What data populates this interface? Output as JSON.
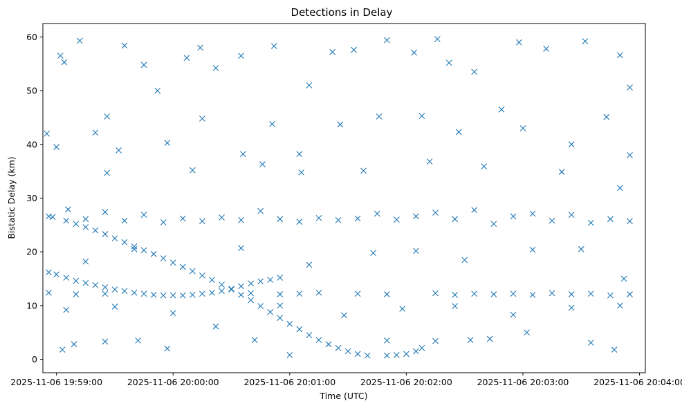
{
  "chart_data": {
    "type": "scatter",
    "title": "Detections in Delay",
    "xlabel": "Time (UTC)",
    "ylabel": "Bistatic Delay (km)",
    "marker": "x",
    "color": "#1f77b4",
    "grid": false,
    "xlim": [
      "2025-11-06 19:58:53",
      "2025-11-06 20:04:03"
    ],
    "ylim": [
      -2.5,
      62.5
    ],
    "xticks": [
      "2025-11-06 19:59:00",
      "2025-11-06 20:00:00",
      "2025-11-06 20:01:00",
      "2025-11-06 20:02:00",
      "2025-11-06 20:03:00",
      "2025-11-06 20:04:00"
    ],
    "yticks": [
      0,
      10,
      20,
      30,
      40,
      50,
      60
    ],
    "series": [
      {
        "description": "descending track",
        "points": [
          [
            "2025-11-06 19:58:56",
            16.2
          ],
          [
            "2025-11-06 19:59:00",
            15.8
          ],
          [
            "2025-11-06 19:59:05",
            15.2
          ],
          [
            "2025-11-06 19:59:10",
            14.6
          ],
          [
            "2025-11-06 19:59:15",
            14.2
          ],
          [
            "2025-11-06 19:59:20",
            13.8
          ],
          [
            "2025-11-06 19:59:25",
            13.4
          ],
          [
            "2025-11-06 19:59:30",
            13.0
          ],
          [
            "2025-11-06 19:59:35",
            12.7
          ],
          [
            "2025-11-06 19:59:40",
            12.4
          ],
          [
            "2025-11-06 19:59:45",
            12.2
          ],
          [
            "2025-11-06 19:59:50",
            12.0
          ],
          [
            "2025-11-06 19:59:55",
            11.9
          ],
          [
            "2025-11-06 20:00:00",
            11.9
          ],
          [
            "2025-11-06 20:00:05",
            11.9
          ],
          [
            "2025-11-06 20:00:10",
            12.0
          ],
          [
            "2025-11-06 20:00:15",
            12.2
          ],
          [
            "2025-11-06 20:00:20",
            12.4
          ],
          [
            "2025-11-06 20:00:25",
            12.7
          ],
          [
            "2025-11-06 20:00:30",
            13.1
          ],
          [
            "2025-11-06 20:00:35",
            13.6
          ],
          [
            "2025-11-06 20:00:40",
            14.1
          ],
          [
            "2025-11-06 20:00:45",
            14.5
          ],
          [
            "2025-11-06 20:00:50",
            14.8
          ],
          [
            "2025-11-06 20:00:55",
            15.2
          ]
        ]
      },
      {
        "description": "diagonal track",
        "points": [
          [
            "2025-11-06 19:58:58",
            26.5
          ],
          [
            "2025-11-06 19:59:05",
            25.8
          ],
          [
            "2025-11-06 19:59:10",
            25.2
          ],
          [
            "2025-11-06 19:59:15",
            24.6
          ],
          [
            "2025-11-06 19:59:20",
            24.0
          ],
          [
            "2025-11-06 19:59:25",
            23.3
          ],
          [
            "2025-11-06 19:59:30",
            22.5
          ],
          [
            "2025-11-06 19:59:35",
            21.8
          ],
          [
            "2025-11-06 19:59:40",
            21.0
          ],
          [
            "2025-11-06 19:59:45",
            20.3
          ],
          [
            "2025-11-06 19:59:50",
            19.6
          ],
          [
            "2025-11-06 19:59:55",
            18.8
          ],
          [
            "2025-11-06 20:00:00",
            18.0
          ],
          [
            "2025-11-06 20:00:05",
            17.2
          ],
          [
            "2025-11-06 20:00:10",
            16.4
          ],
          [
            "2025-11-06 20:00:15",
            15.6
          ],
          [
            "2025-11-06 20:00:20",
            14.8
          ],
          [
            "2025-11-06 20:00:25",
            13.9
          ],
          [
            "2025-11-06 20:00:30",
            13.0
          ],
          [
            "2025-11-06 20:00:35",
            12.0
          ],
          [
            "2025-11-06 20:00:40",
            11.0
          ],
          [
            "2025-11-06 20:00:45",
            9.9
          ],
          [
            "2025-11-06 20:00:50",
            8.8
          ],
          [
            "2025-11-06 20:00:55",
            7.7
          ],
          [
            "2025-11-06 20:01:00",
            6.6
          ],
          [
            "2025-11-06 20:01:05",
            5.6
          ],
          [
            "2025-11-06 20:01:10",
            4.5
          ],
          [
            "2025-11-06 20:01:15",
            3.6
          ],
          [
            "2025-11-06 20:01:20",
            2.8
          ],
          [
            "2025-11-06 20:01:25",
            2.1
          ],
          [
            "2025-11-06 20:01:30",
            1.5
          ],
          [
            "2025-11-06 20:01:35",
            1.0
          ],
          [
            "2025-11-06 20:01:40",
            0.7
          ],
          [
            "2025-11-06 20:01:50",
            0.7
          ],
          [
            "2025-11-06 20:01:55",
            0.8
          ],
          [
            "2025-11-06 20:02:00",
            1.0
          ],
          [
            "2025-11-06 20:02:05",
            1.5
          ],
          [
            "2025-11-06 20:02:08",
            2.1
          ]
        ]
      },
      {
        "description": "band near 26 km",
        "points": [
          [
            "2025-11-06 19:58:56",
            26.6
          ],
          [
            "2025-11-06 19:59:06",
            27.9
          ],
          [
            "2025-11-06 19:59:15",
            26.1
          ],
          [
            "2025-11-06 19:59:25",
            27.4
          ],
          [
            "2025-11-06 19:59:35",
            25.8
          ],
          [
            "2025-11-06 19:59:45",
            26.9
          ],
          [
            "2025-11-06 19:59:55",
            25.5
          ],
          [
            "2025-11-06 20:00:05",
            26.2
          ],
          [
            "2025-11-06 20:00:15",
            25.7
          ],
          [
            "2025-11-06 20:00:25",
            26.4
          ],
          [
            "2025-11-06 20:00:35",
            25.9
          ],
          [
            "2025-11-06 20:00:45",
            27.6
          ],
          [
            "2025-11-06 20:00:55",
            26.1
          ],
          [
            "2025-11-06 20:01:05",
            25.6
          ],
          [
            "2025-11-06 20:01:15",
            26.3
          ],
          [
            "2025-11-06 20:01:25",
            25.9
          ],
          [
            "2025-11-06 20:01:35",
            26.2
          ],
          [
            "2025-11-06 20:01:45",
            27.1
          ],
          [
            "2025-11-06 20:01:55",
            26.0
          ],
          [
            "2025-11-06 20:02:05",
            26.6
          ],
          [
            "2025-11-06 20:02:15",
            27.3
          ],
          [
            "2025-11-06 20:02:25",
            26.1
          ],
          [
            "2025-11-06 20:02:35",
            27.8
          ],
          [
            "2025-11-06 20:02:45",
            25.2
          ],
          [
            "2025-11-06 20:02:55",
            26.6
          ],
          [
            "2025-11-06 20:03:05",
            27.1
          ],
          [
            "2025-11-06 20:03:15",
            25.8
          ],
          [
            "2025-11-06 20:03:25",
            26.9
          ],
          [
            "2025-11-06 20:03:35",
            25.4
          ],
          [
            "2025-11-06 20:03:45",
            26.1
          ],
          [
            "2025-11-06 20:03:55",
            25.7
          ]
        ]
      },
      {
        "description": "band near 12 km",
        "points": [
          [
            "2025-11-06 19:58:56",
            12.4
          ],
          [
            "2025-11-06 19:59:10",
            12.1
          ],
          [
            "2025-11-06 19:59:25",
            12.2
          ],
          [
            "2025-11-06 20:00:40",
            12.3
          ],
          [
            "2025-11-06 20:00:55",
            12.1
          ],
          [
            "2025-11-06 20:01:05",
            12.2
          ],
          [
            "2025-11-06 20:01:15",
            12.4
          ],
          [
            "2025-11-06 20:01:35",
            12.2
          ],
          [
            "2025-11-06 20:01:50",
            12.1
          ],
          [
            "2025-11-06 20:02:15",
            12.3
          ],
          [
            "2025-11-06 20:02:25",
            12.0
          ],
          [
            "2025-11-06 20:02:35",
            12.2
          ],
          [
            "2025-11-06 20:02:45",
            12.1
          ],
          [
            "2025-11-06 20:02:55",
            12.2
          ],
          [
            "2025-11-06 20:03:05",
            12.0
          ],
          [
            "2025-11-06 20:03:15",
            12.3
          ],
          [
            "2025-11-06 20:03:25",
            12.1
          ],
          [
            "2025-11-06 20:03:35",
            12.2
          ],
          [
            "2025-11-06 20:03:45",
            11.9
          ],
          [
            "2025-11-06 20:03:55",
            12.1
          ]
        ]
      },
      {
        "description": "scattered detections",
        "points": [
          [
            "2025-11-06 19:58:55",
            42.0
          ],
          [
            "2025-11-06 19:59:00",
            39.5
          ],
          [
            "2025-11-06 19:59:02",
            56.5
          ],
          [
            "2025-11-06 19:59:04",
            55.3
          ],
          [
            "2025-11-06 19:59:12",
            59.3
          ],
          [
            "2025-11-06 19:59:20",
            42.2
          ],
          [
            "2025-11-06 19:59:26",
            45.2
          ],
          [
            "2025-11-06 19:59:35",
            58.4
          ],
          [
            "2025-11-06 19:59:45",
            54.8
          ],
          [
            "2025-11-06 19:59:52",
            50.0
          ],
          [
            "2025-11-06 20:00:07",
            56.1
          ],
          [
            "2025-11-06 20:00:14",
            58.0
          ],
          [
            "2025-11-06 20:00:22",
            54.2
          ],
          [
            "2025-11-06 20:00:35",
            56.5
          ],
          [
            "2025-11-06 20:00:52",
            58.3
          ],
          [
            "2025-11-06 20:01:10",
            51.0
          ],
          [
            "2025-11-06 20:01:22",
            57.2
          ],
          [
            "2025-11-06 20:01:33",
            57.6
          ],
          [
            "2025-11-06 20:01:50",
            59.4
          ],
          [
            "2025-11-06 20:02:04",
            57.1
          ],
          [
            "2025-11-06 20:02:16",
            59.6
          ],
          [
            "2025-11-06 20:02:22",
            55.2
          ],
          [
            "2025-11-06 20:02:35",
            53.5
          ],
          [
            "2025-11-06 20:02:58",
            59.0
          ],
          [
            "2025-11-06 20:03:12",
            57.8
          ],
          [
            "2025-11-06 20:03:32",
            59.2
          ],
          [
            "2025-11-06 20:03:50",
            56.6
          ],
          [
            "2025-11-06 20:03:55",
            50.6
          ],
          [
            "2025-11-06 19:59:03",
            1.8
          ],
          [
            "2025-11-06 19:59:09",
            2.8
          ],
          [
            "2025-11-06 19:59:25",
            3.3
          ],
          [
            "2025-11-06 19:59:42",
            3.5
          ],
          [
            "2025-11-06 19:59:57",
            2.0
          ],
          [
            "2025-11-06 20:00:42",
            3.6
          ],
          [
            "2025-11-06 20:01:00",
            0.8
          ],
          [
            "2025-11-06 20:01:50",
            3.5
          ],
          [
            "2025-11-06 20:02:15",
            3.4
          ],
          [
            "2025-11-06 20:02:33",
            3.6
          ],
          [
            "2025-11-06 20:02:43",
            3.8
          ],
          [
            "2025-11-06 20:03:02",
            5.0
          ],
          [
            "2025-11-06 20:03:35",
            3.1
          ],
          [
            "2025-11-06 20:03:47",
            1.8
          ],
          [
            "2025-11-06 19:59:32",
            38.9
          ],
          [
            "2025-11-06 19:59:57",
            40.3
          ],
          [
            "2025-11-06 20:00:15",
            44.8
          ],
          [
            "2025-11-06 20:00:36",
            38.2
          ],
          [
            "2025-11-06 20:00:51",
            43.8
          ],
          [
            "2025-11-06 20:01:05",
            38.2
          ],
          [
            "2025-11-06 20:01:26",
            43.7
          ],
          [
            "2025-11-06 20:01:46",
            45.2
          ],
          [
            "2025-11-06 20:02:08",
            45.3
          ],
          [
            "2025-11-06 20:02:27",
            42.3
          ],
          [
            "2025-11-06 20:02:49",
            46.5
          ],
          [
            "2025-11-06 20:03:00",
            43.0
          ],
          [
            "2025-11-06 20:03:25",
            40.0
          ],
          [
            "2025-11-06 20:03:43",
            45.1
          ],
          [
            "2025-11-06 20:03:55",
            38.0
          ],
          [
            "2025-11-06 19:59:26",
            34.7
          ],
          [
            "2025-11-06 20:00:10",
            35.2
          ],
          [
            "2025-11-06 20:00:46",
            36.3
          ],
          [
            "2025-11-06 20:01:06",
            34.8
          ],
          [
            "2025-11-06 20:01:38",
            35.1
          ],
          [
            "2025-11-06 20:02:12",
            36.8
          ],
          [
            "2025-11-06 20:02:40",
            35.9
          ],
          [
            "2025-11-06 20:03:20",
            34.9
          ],
          [
            "2025-11-06 20:03:50",
            31.9
          ],
          [
            "2025-11-06 19:59:15",
            18.2
          ],
          [
            "2025-11-06 19:59:40",
            20.5
          ],
          [
            "2025-11-06 20:00:35",
            20.7
          ],
          [
            "2025-11-06 20:01:10",
            17.6
          ],
          [
            "2025-11-06 20:01:43",
            19.8
          ],
          [
            "2025-11-06 20:02:05",
            20.2
          ],
          [
            "2025-11-06 20:02:30",
            18.5
          ],
          [
            "2025-11-06 20:03:05",
            20.4
          ],
          [
            "2025-11-06 20:03:30",
            20.5
          ],
          [
            "2025-11-06 20:03:52",
            15.0
          ],
          [
            "2025-11-06 19:59:05",
            9.2
          ],
          [
            "2025-11-06 19:59:30",
            9.8
          ],
          [
            "2025-11-06 20:00:00",
            8.6
          ],
          [
            "2025-11-06 20:00:22",
            6.1
          ],
          [
            "2025-11-06 20:00:55",
            10.0
          ],
          [
            "2025-11-06 20:01:28",
            8.2
          ],
          [
            "2025-11-06 20:01:58",
            9.4
          ],
          [
            "2025-11-06 20:02:25",
            9.9
          ],
          [
            "2025-11-06 20:02:55",
            8.3
          ],
          [
            "2025-11-06 20:03:25",
            9.6
          ],
          [
            "2025-11-06 20:03:50",
            10.0
          ]
        ]
      }
    ]
  }
}
